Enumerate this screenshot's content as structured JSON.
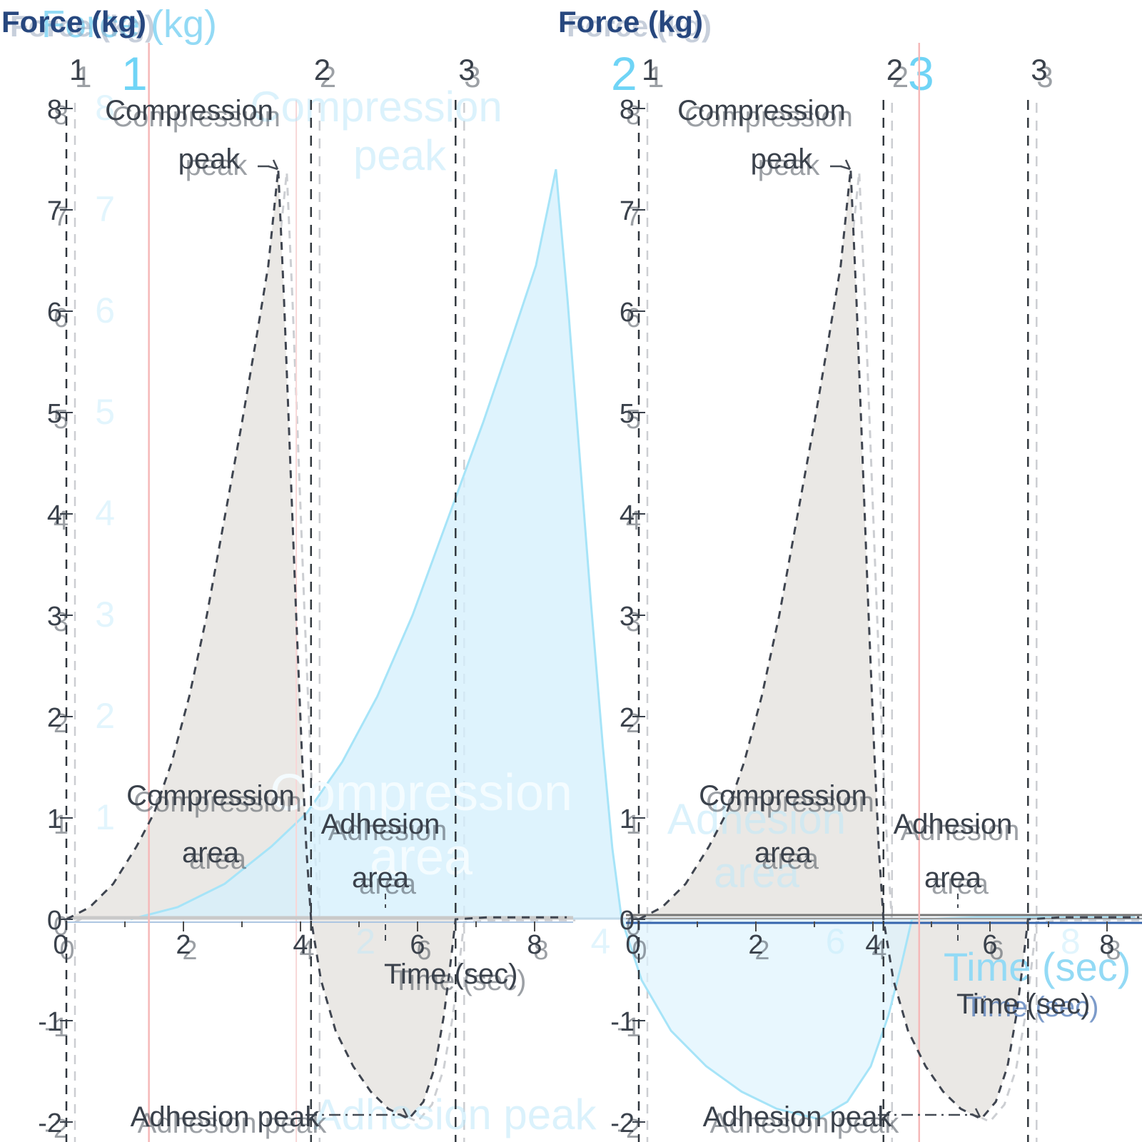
{
  "chart_data": {
    "type": "area",
    "title": "",
    "xlabel": "Time (sec)",
    "ylabel": "Force (kg)",
    "xlim": [
      0,
      8.6
    ],
    "ylim": [
      -2.1,
      8.1
    ],
    "grid": false,
    "x_ticks": [
      0,
      2,
      4,
      6,
      8
    ],
    "y_ticks": [
      8,
      7,
      6,
      5,
      4,
      3,
      2,
      1,
      0,
      -1,
      -2
    ],
    "curve": {
      "name": "force-time-curve",
      "points": [
        [
          0,
          0
        ],
        [
          0.4,
          0.12
        ],
        [
          0.8,
          0.35
        ],
        [
          1.2,
          0.72
        ],
        [
          1.5,
          1.05
        ],
        [
          1.8,
          1.55
        ],
        [
          2.1,
          2.2
        ],
        [
          2.4,
          3.0
        ],
        [
          2.7,
          3.95
        ],
        [
          3.0,
          4.9
        ],
        [
          3.25,
          5.75
        ],
        [
          3.45,
          6.45
        ],
        [
          3.62,
          7.4
        ],
        [
          3.72,
          6.1
        ],
        [
          3.82,
          4.6
        ],
        [
          3.92,
          3.1
        ],
        [
          4.02,
          1.7
        ],
        [
          4.1,
          0.7
        ],
        [
          4.18,
          0
        ],
        [
          4.35,
          -0.6
        ],
        [
          4.6,
          -1.1
        ],
        [
          4.9,
          -1.45
        ],
        [
          5.2,
          -1.7
        ],
        [
          5.5,
          -1.87
        ],
        [
          5.85,
          -1.97
        ],
        [
          6.1,
          -1.8
        ],
        [
          6.3,
          -1.45
        ],
        [
          6.45,
          -0.95
        ],
        [
          6.56,
          -0.45
        ],
        [
          6.65,
          0
        ],
        [
          7.2,
          0.02
        ],
        [
          8.55,
          0.02
        ]
      ]
    },
    "regions": {
      "labels": [
        "1",
        "2",
        "3"
      ],
      "start_times": [
        0,
        4.18,
        6.65
      ]
    },
    "annotations": {
      "compression_peak": {
        "line1": "Compression",
        "line2": "peak",
        "value_kg": 7.4,
        "time_sec": 3.62
      },
      "adhesion_peak": {
        "text": "Adhesion peak",
        "value_kg": -1.97,
        "time_sec": 5.85
      },
      "compression_area": {
        "line1": "Compression",
        "line2": "area"
      },
      "adhesion_area": {
        "line1": "Adhesion",
        "line2": "area"
      }
    },
    "panels": [
      {
        "name": "left",
        "marker_time": 1.41
      },
      {
        "name": "right",
        "marker_time": 4.79
      }
    ]
  },
  "ghost": {
    "force_label": "Force (kg)",
    "time_label": "Time (sec)",
    "numbers": [
      "1",
      "2",
      "3"
    ],
    "compression_area_line1": "Compression",
    "compression_area_line2": "area",
    "adhesion_area_line1": "Adhesion",
    "adhesion_area_line2": "area",
    "compression_peak_line1": "Compression",
    "compression_peak_line2": "peak",
    "adhesion_peak": "Adhesion peak"
  },
  "colors": {
    "curve": "#3f4550",
    "text": "#3a414b",
    "pale_double": "#c0c3c8",
    "fill_gray": "#eae8e5",
    "force_label_navy": "#27477e",
    "axis_blue": "#3565ad",
    "marker_pink": "#f5b8b8",
    "ghost_marker_pink": "#f8d6d6",
    "ghost_cyan_num": "#6fd4f6",
    "ghost_cyan_label": "#93daf5",
    "ghost_stroke": "#a6e4f8",
    "ghost_fill_comp": "rgba(213,239,252,0.78)",
    "ghost_fill_adh": "rgba(222,243,253,0.70)",
    "ghost_big_text": "rgba(244,252,255,0.95)",
    "ghost_faint_text": "rgba(190,232,250,0.55)",
    "ghost_axis_line": "#c2daea",
    "zero_gray_light": "#c9c9c9",
    "zero_gray_dark": "#777777"
  }
}
